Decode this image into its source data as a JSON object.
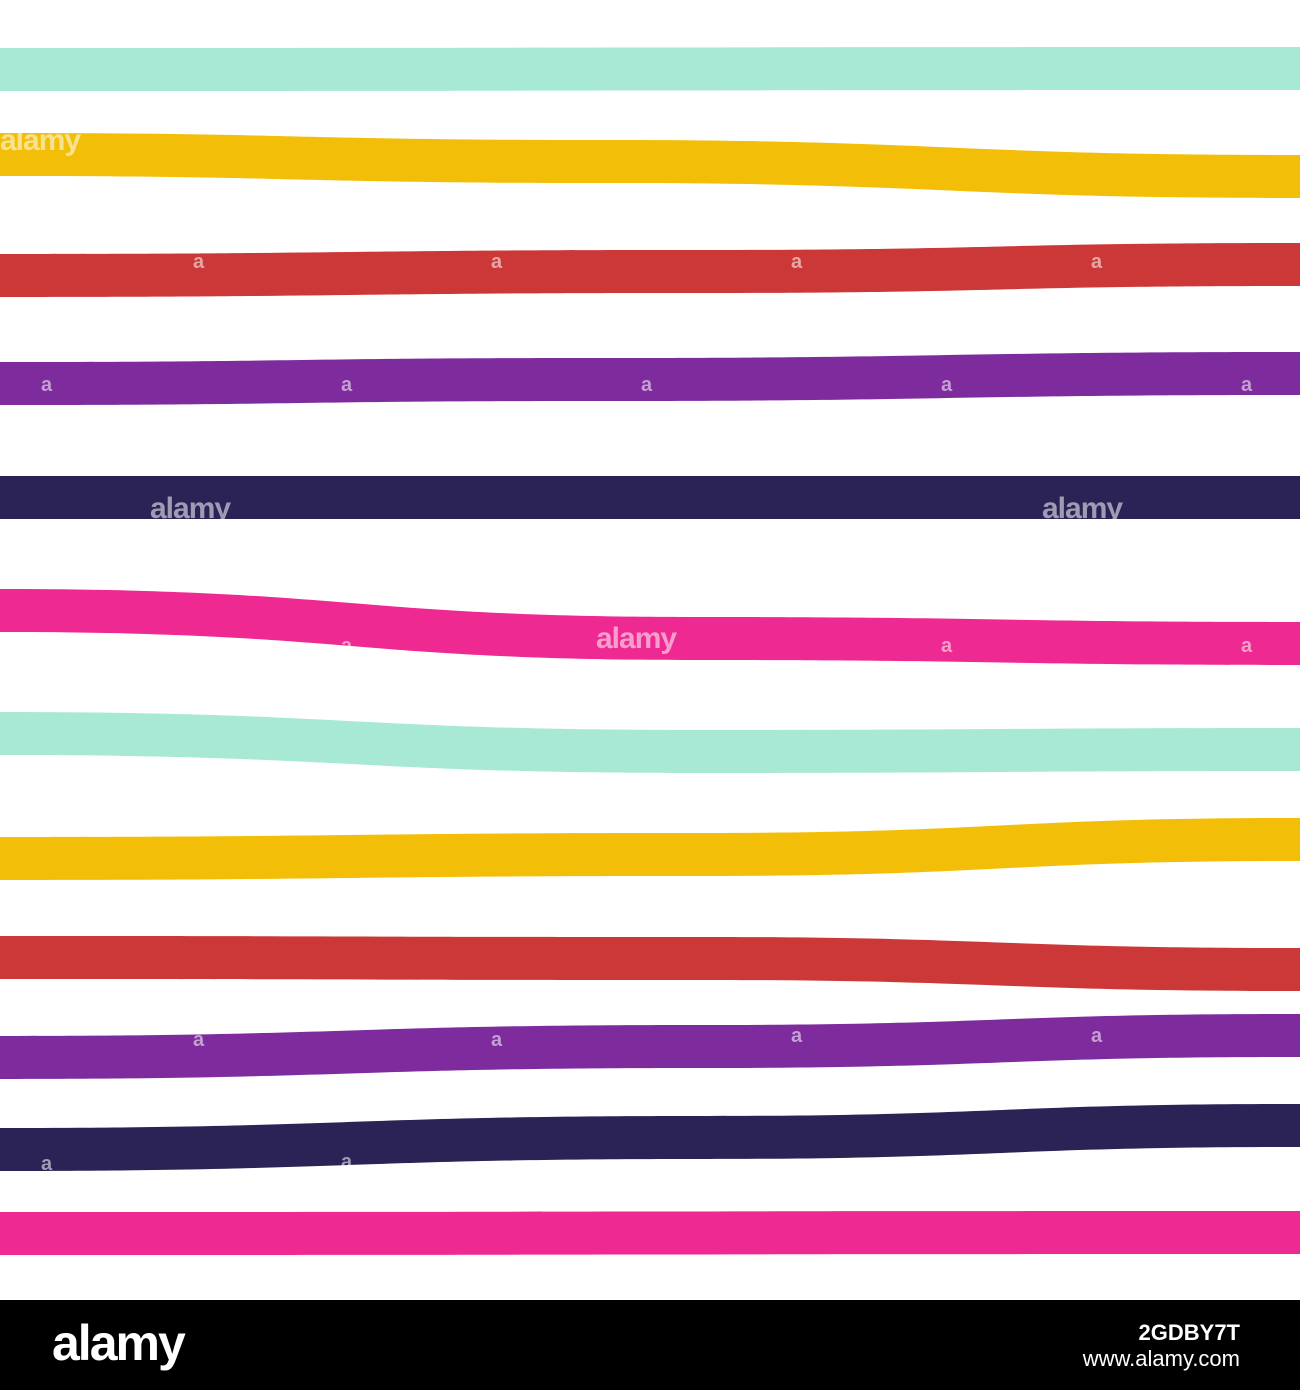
{
  "watermark": {
    "text": "alamy",
    "mark": "a"
  },
  "footer": {
    "logo": "alamy",
    "image_code": "2GDBY7T",
    "site": "www.alamy.com"
  },
  "palette": {
    "mint": "#a8e9d5",
    "yellow": "#f2be08",
    "red": "#cc3838",
    "purple": "#7d2b9d",
    "navy": "#2b2256",
    "pink": "#ee2991"
  },
  "stripes": [
    {
      "color": "mint"
    },
    {
      "color": "yellow"
    },
    {
      "color": "red"
    },
    {
      "color": "purple"
    },
    {
      "color": "navy"
    },
    {
      "color": "pink"
    },
    {
      "color": "mint"
    },
    {
      "color": "yellow"
    },
    {
      "color": "red"
    },
    {
      "color": "purple"
    },
    {
      "color": "navy"
    },
    {
      "color": "pink"
    }
  ]
}
